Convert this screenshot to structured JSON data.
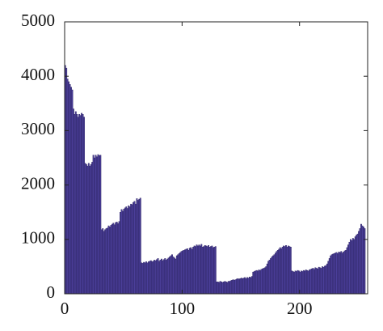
{
  "chart_data": {
    "type": "histogram",
    "color": "#4b3f99",
    "edge_color": "#2a2060",
    "xlim": [
      0,
      258
    ],
    "ylim": [
      0,
      5000
    ],
    "xticks": [
      0,
      100,
      200
    ],
    "yticks": [
      0,
      1000,
      2000,
      3000,
      4000,
      5000
    ],
    "bins": [
      0,
      1,
      2,
      3,
      4,
      5,
      6,
      7,
      8,
      9,
      10,
      11,
      12,
      13,
      14,
      15,
      16,
      17,
      18,
      19,
      20,
      21,
      22,
      23,
      24,
      25,
      26,
      27,
      28,
      29,
      30,
      31,
      32,
      33,
      34,
      35,
      36,
      37,
      38,
      39,
      40,
      41,
      42,
      43,
      44,
      45,
      46,
      47,
      48,
      49,
      50,
      51,
      52,
      53,
      54,
      55,
      56,
      57,
      58,
      59,
      60,
      61,
      62,
      63,
      64,
      65,
      66,
      67,
      68,
      69,
      70,
      71,
      72,
      73,
      74,
      75,
      76,
      77,
      78,
      79,
      80,
      81,
      82,
      83,
      84,
      85,
      86,
      87,
      88,
      89,
      90,
      91,
      92,
      93,
      94,
      95,
      96,
      97,
      98,
      99,
      100,
      101,
      102,
      103,
      104,
      105,
      106,
      107,
      108,
      109,
      110,
      111,
      112,
      113,
      114,
      115,
      116,
      117,
      118,
      119,
      120,
      121,
      122,
      123,
      124,
      125,
      126,
      127,
      128,
      129,
      130,
      131,
      132,
      133,
      134,
      135,
      136,
      137,
      138,
      139,
      140,
      141,
      142,
      143,
      144,
      145,
      146,
      147,
      148,
      149,
      150,
      151,
      152,
      153,
      154,
      155,
      156,
      157,
      158,
      159,
      160,
      161,
      162,
      163,
      164,
      165,
      166,
      167,
      168,
      169,
      170,
      171,
      172,
      173,
      174,
      175,
      176,
      177,
      178,
      179,
      180,
      181,
      182,
      183,
      184,
      185,
      186,
      187,
      188,
      189,
      190,
      191,
      192,
      193,
      194,
      195,
      196,
      197,
      198,
      199,
      200,
      201,
      202,
      203,
      204,
      205,
      206,
      207,
      208,
      209,
      210,
      211,
      212,
      213,
      214,
      215,
      216,
      217,
      218,
      219,
      220,
      221,
      222,
      223,
      224,
      225,
      226,
      227,
      228,
      229,
      230,
      231,
      232,
      233,
      234,
      235,
      236,
      237,
      238,
      239,
      240,
      241,
      242,
      243,
      244,
      245,
      246,
      247,
      248,
      249,
      250,
      251,
      252,
      253,
      254,
      255,
      256
    ],
    "values": [
      4200,
      4150,
      3950,
      3900,
      3850,
      3800,
      3750,
      3400,
      3300,
      3350,
      3300,
      3250,
      3300,
      3280,
      3320,
      3300,
      3250,
      2400,
      2380,
      2350,
      2400,
      2350,
      2380,
      2420,
      2550,
      2500,
      2550,
      2520,
      2560,
      2540,
      2550,
      1180,
      1200,
      1150,
      1180,
      1200,
      1210,
      1250,
      1230,
      1260,
      1280,
      1300,
      1270,
      1310,
      1320,
      1290,
      1330,
      1500,
      1550,
      1520,
      1560,
      1580,
      1600,
      1570,
      1620,
      1600,
      1650,
      1640,
      1680,
      1700,
      1650,
      1750,
      1720,
      1740,
      1760,
      570,
      560,
      580,
      570,
      590,
      570,
      590,
      600,
      610,
      590,
      600,
      620,
      610,
      630,
      650,
      600,
      620,
      640,
      610,
      630,
      650,
      620,
      640,
      660,
      680,
      700,
      720,
      680,
      660,
      640,
      700,
      720,
      740,
      760,
      780,
      790,
      800,
      810,
      820,
      830,
      800,
      840,
      850,
      820,
      860,
      880,
      870,
      900,
      880,
      900,
      880,
      910,
      860,
      870,
      890,
      880,
      870,
      890,
      860,
      870,
      880,
      850,
      860,
      870,
      220,
      220,
      210,
      230,
      220,
      210,
      220,
      230,
      220,
      210,
      230,
      230,
      240,
      250,
      260,
      250,
      260,
      270,
      280,
      270,
      280,
      290,
      280,
      290,
      300,
      280,
      300,
      290,
      310,
      300,
      320,
      400,
      410,
      420,
      430,
      420,
      440,
      430,
      450,
      460,
      470,
      480,
      500,
      550,
      600,
      620,
      650,
      680,
      700,
      720,
      750,
      780,
      800,
      820,
      850,
      830,
      860,
      880,
      870,
      890,
      860,
      880,
      870,
      860,
      420,
      410,
      400,
      420,
      410,
      430,
      420,
      400,
      420,
      410,
      430,
      420,
      440,
      430,
      420,
      440,
      450,
      460,
      470,
      450,
      480,
      470,
      460,
      490,
      480,
      470,
      500,
      490,
      510,
      520,
      550,
      600,
      650,
      700,
      720,
      730,
      740,
      750,
      760,
      740,
      770,
      760,
      780,
      750,
      770,
      790,
      800,
      850,
      900,
      950,
      1000,
      980,
      1020,
      1000,
      1050,
      1080,
      1100,
      1150,
      1200,
      1280,
      1250,
      1230,
      1200
    ]
  }
}
